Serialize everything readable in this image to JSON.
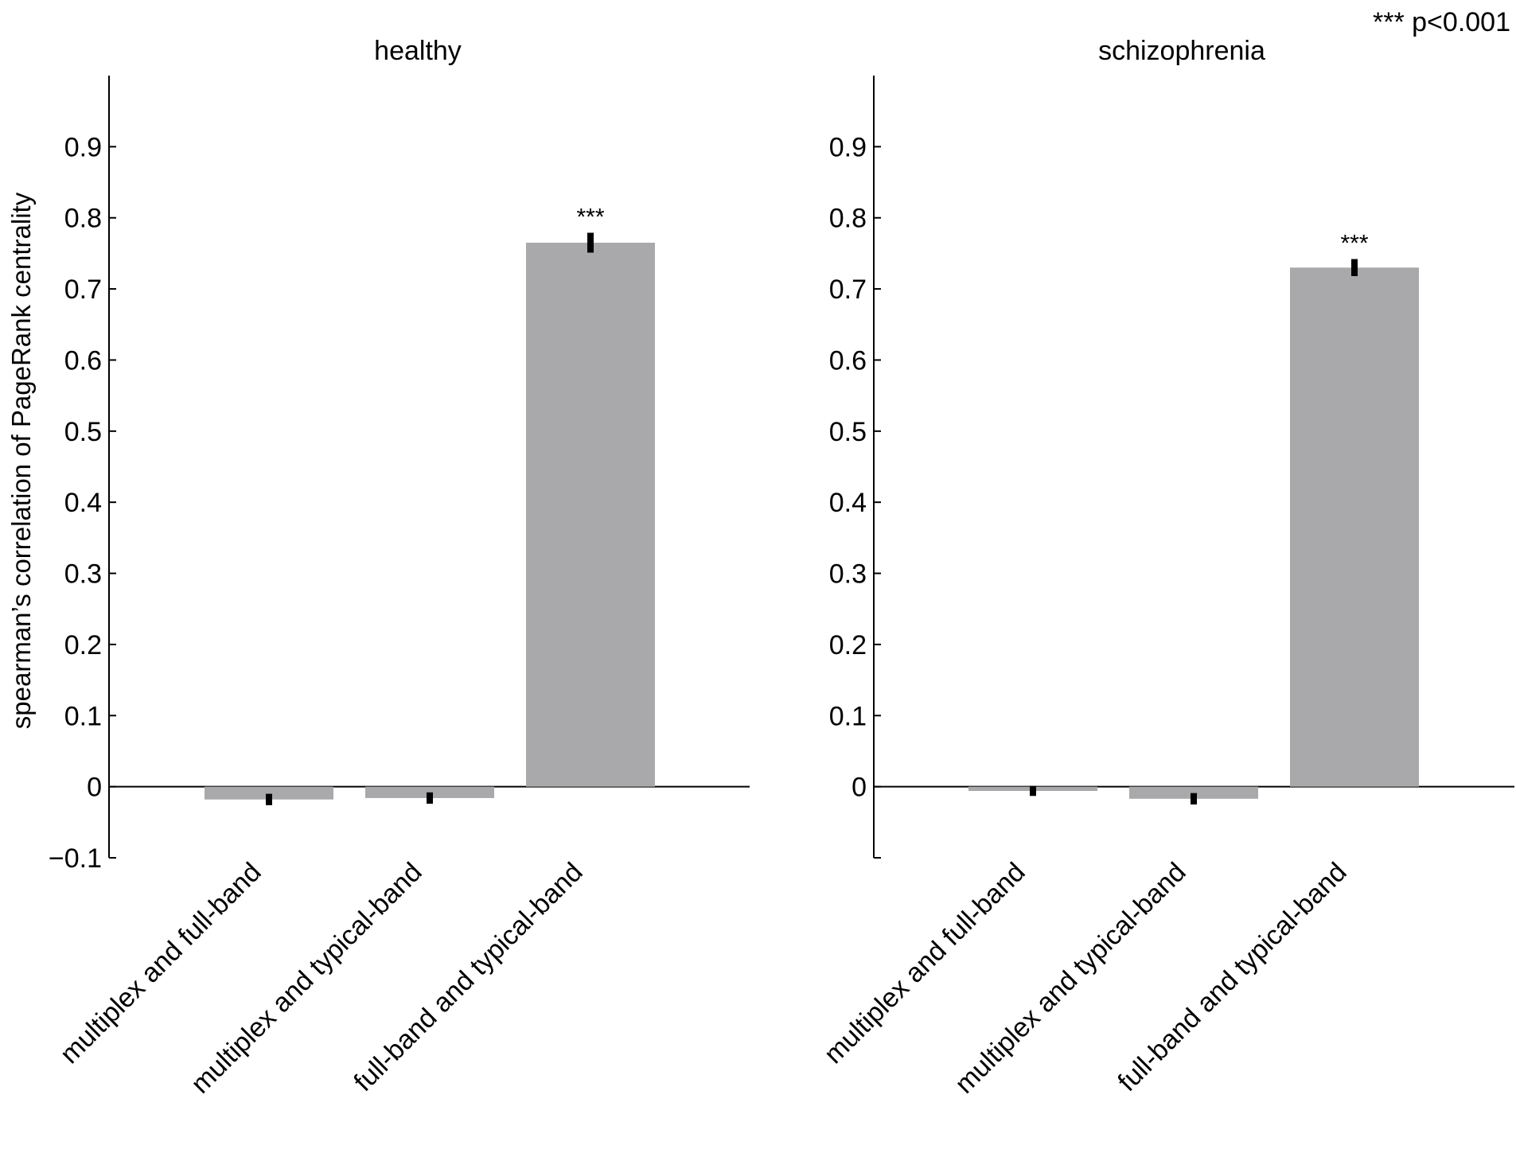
{
  "significance_legend": "*** p<0.001",
  "colors": {
    "bar": "#a9a9ab",
    "error": "#000000",
    "axis": "#000000"
  },
  "chart_data": [
    {
      "type": "bar",
      "title": "healthy",
      "ylabel": "spearman’s correlation of PageRank centrality",
      "xlabel": "",
      "ylim": [
        -0.1,
        1.0
      ],
      "yticks": [
        -0.1,
        0,
        0.1,
        0.2,
        0.3,
        0.4,
        0.5,
        0.6,
        0.7,
        0.8,
        0.9
      ],
      "ytick_labels": [
        "−0.1",
        "0",
        "0.1",
        "0.2",
        "0.3",
        "0.4",
        "0.5",
        "0.6",
        "0.7",
        "0.8",
        "0.9"
      ],
      "categories": [
        "multiplex and full-band",
        "multiplex and typical-band",
        "full-band and typical-band"
      ],
      "values": [
        -0.018,
        -0.016,
        0.765
      ],
      "errors": [
        0.008,
        0.008,
        0.014
      ],
      "annotations": [
        "",
        "",
        "***"
      ],
      "grid": false
    },
    {
      "type": "bar",
      "title": "schizophrenia",
      "ylabel": "",
      "xlabel": "",
      "ylim": [
        -0.1,
        1.0
      ],
      "yticks": [
        -0.1,
        0,
        0.1,
        0.2,
        0.3,
        0.4,
        0.5,
        0.6,
        0.7,
        0.8,
        0.9
      ],
      "ytick_labels": [
        "",
        "0",
        "0.1",
        "0.2",
        "0.3",
        "0.4",
        "0.5",
        "0.6",
        "0.7",
        "0.8",
        "0.9"
      ],
      "categories": [
        "multiplex and full-band",
        "multiplex and typical-band",
        "full-band and typical-band"
      ],
      "values": [
        -0.006,
        -0.017,
        0.73
      ],
      "errors": [
        0.007,
        0.008,
        0.012
      ],
      "annotations": [
        "",
        "",
        "***"
      ],
      "grid": false
    }
  ]
}
